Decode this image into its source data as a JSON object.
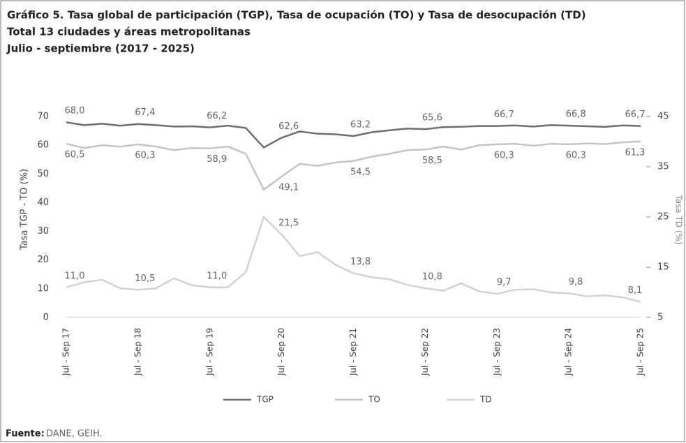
{
  "chart_data": {
    "type": "line",
    "title": "Gráfico 5. Tasa global de participación (TGP), Tasa de ocupación (TO) y Tasa de desocupación (TD)",
    "subtitle": "Total 13 ciudades y áreas metropolitanas",
    "subtitle2": "Julio - septiembre (2017 - 2025)",
    "ylabel": "Tasa TGP - TO (%)",
    "y2label": "Tasa TD (%)",
    "source_label": "Fuente:",
    "source": "DANE, GEIH.",
    "categories": [
      "Jul - Sep 17",
      null,
      null,
      null,
      "Jul - Sep 18",
      null,
      null,
      null,
      "Jul - Sep 19",
      null,
      null,
      null,
      "Jul - Sep 20",
      null,
      null,
      null,
      "Jul - Sep 21",
      null,
      null,
      null,
      "Jul - Sep 22",
      null,
      null,
      null,
      "Jul - Sep 23",
      null,
      null,
      null,
      "Jul - Sep 24",
      null,
      null,
      null,
      "Jul - Sep 25"
    ],
    "ylim": [
      0,
      70
    ],
    "yticks": [
      0,
      10,
      20,
      30,
      40,
      50,
      60,
      70
    ],
    "y2lim": [
      5,
      45
    ],
    "y2ticks": [
      5,
      15,
      25,
      35,
      45
    ],
    "legend": "bottom",
    "series": [
      {
        "name": "TGP",
        "color": "#6e6e6e",
        "label_pos": "above",
        "values": [
          68.0,
          67.0,
          67.5,
          66.8,
          67.4,
          67.0,
          66.5,
          66.6,
          66.2,
          66.8,
          66.0,
          59.2,
          62.6,
          64.8,
          64.0,
          63.8,
          63.2,
          64.5,
          65.2,
          65.8,
          65.6,
          66.3,
          66.4,
          66.7,
          66.7,
          66.9,
          66.5,
          67.0,
          66.8,
          66.6,
          66.4,
          66.9,
          66.7
        ],
        "value_labels": [
          "68,0",
          null,
          null,
          null,
          "67,4",
          null,
          null,
          null,
          "66,2",
          null,
          null,
          null,
          "62,6",
          null,
          null,
          null,
          "63,2",
          null,
          null,
          null,
          "65,6",
          null,
          null,
          null,
          "66,7",
          null,
          null,
          null,
          "66,8",
          null,
          null,
          null,
          "66,7"
        ]
      },
      {
        "name": "TO",
        "color": "#c4c4c4",
        "label_pos": "below",
        "values": [
          60.5,
          59.0,
          60.0,
          59.5,
          60.3,
          59.5,
          58.3,
          59.0,
          58.9,
          59.5,
          57.0,
          44.5,
          49.1,
          53.5,
          52.8,
          54.0,
          54.5,
          56.0,
          57.0,
          58.3,
          58.5,
          59.5,
          58.5,
          60.0,
          60.3,
          60.5,
          59.8,
          60.5,
          60.3,
          60.6,
          60.4,
          61.0,
          61.3
        ],
        "value_labels": [
          "60,5",
          null,
          null,
          null,
          "60,3",
          null,
          null,
          null,
          "58,9",
          null,
          null,
          null,
          "49,1",
          null,
          null,
          null,
          "54,5",
          null,
          null,
          null,
          "58,5",
          null,
          null,
          null,
          "60,3",
          null,
          null,
          null,
          "60,3",
          null,
          null,
          null,
          "61,3"
        ]
      },
      {
        "name": "TD",
        "color": "#d2d2d2",
        "axis": "y2",
        "label_pos": "above",
        "values": [
          11.0,
          12.0,
          12.5,
          10.8,
          10.5,
          10.8,
          12.8,
          11.4,
          11.0,
          11.0,
          14.0,
          25.0,
          21.5,
          17.2,
          18.0,
          15.5,
          13.8,
          13.0,
          12.6,
          11.5,
          10.8,
          10.3,
          11.8,
          10.2,
          9.7,
          10.5,
          10.6,
          10.0,
          9.8,
          9.2,
          9.4,
          9.0,
          8.1
        ],
        "value_labels": [
          "11,0",
          null,
          null,
          null,
          "10,5",
          null,
          null,
          null,
          "11,0",
          null,
          null,
          null,
          "21,5",
          null,
          null,
          null,
          "13,8",
          null,
          null,
          null,
          "10,8",
          null,
          null,
          null,
          "9,7",
          null,
          null,
          null,
          "9,8",
          null,
          null,
          null,
          "8,1"
        ]
      }
    ]
  }
}
